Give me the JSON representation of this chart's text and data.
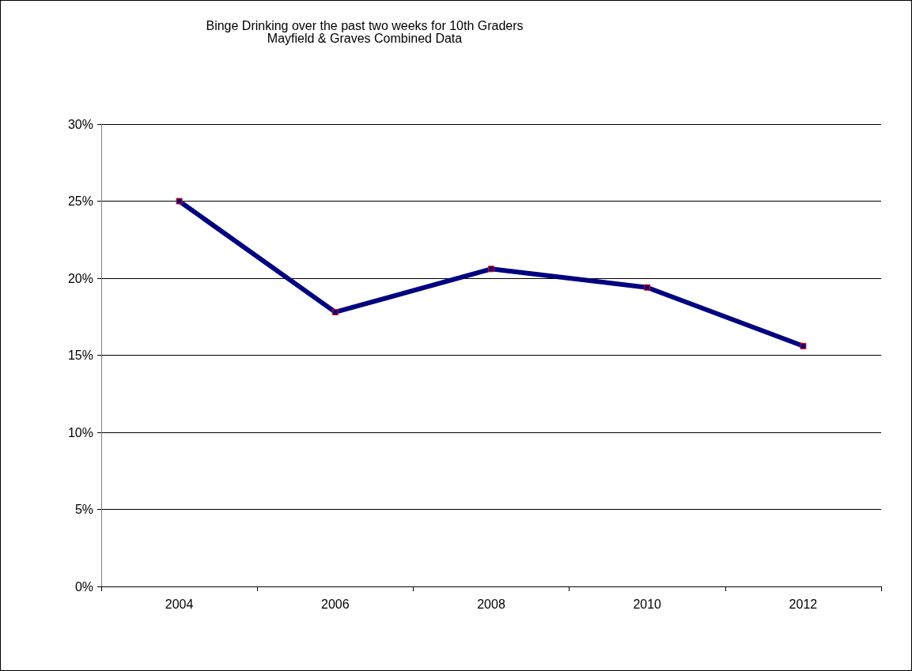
{
  "chart_data": {
    "type": "line",
    "title": "Binge Drinking over the past two weeks for 10th Graders",
    "subtitle": "Mayfield & Graves Combined Data",
    "categories": [
      "2004",
      "2006",
      "2008",
      "2010",
      "2012"
    ],
    "series": [
      {
        "color": "#000080",
        "values": [
          25.0,
          17.8,
          20.6,
          19.4,
          15.6
        ]
      }
    ],
    "ylim": [
      0,
      30
    ],
    "yticks": [
      {
        "value": 0,
        "label": "0%"
      },
      {
        "value": 5,
        "label": "5%"
      },
      {
        "value": 10,
        "label": "10%"
      },
      {
        "value": 15,
        "label": "15%"
      },
      {
        "value": 20,
        "label": "20%"
      },
      {
        "value": 25,
        "label": "25%"
      },
      {
        "value": 30,
        "label": "30%"
      }
    ],
    "grid": "y",
    "marker": "square",
    "line_style": "solid"
  }
}
